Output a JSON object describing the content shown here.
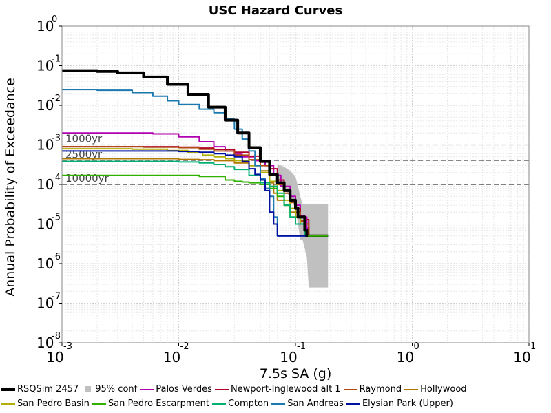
{
  "chart_data": {
    "type": "line",
    "title": "USC Hazard Curves",
    "xlabel": "7.5s SA (g)",
    "ylabel": "Annual Probability of Exceedance",
    "x_scale": "log",
    "y_scale": "log",
    "xlim": [
      0.001,
      10
    ],
    "ylim": [
      1e-08,
      1
    ],
    "grid": true,
    "legend_position": "bottom",
    "x_ticks": [
      {
        "base": "10",
        "exp": "-3"
      },
      {
        "base": "10",
        "exp": "-2"
      },
      {
        "base": "10",
        "exp": "-1"
      },
      {
        "base": "10",
        "exp": "0"
      },
      {
        "base": "10",
        "exp": "1"
      }
    ],
    "y_ticks": [
      {
        "base": "10",
        "exp": "0"
      },
      {
        "base": "10",
        "exp": "-1"
      },
      {
        "base": "10",
        "exp": "-2"
      },
      {
        "base": "10",
        "exp": "-3"
      },
      {
        "base": "10",
        "exp": "-4"
      },
      {
        "base": "10",
        "exp": "-5"
      },
      {
        "base": "10",
        "exp": "-6"
      },
      {
        "base": "10",
        "exp": "-7"
      },
      {
        "base": "10",
        "exp": "-8"
      }
    ],
    "reference_lines": [
      {
        "label": "1000yr",
        "y": 0.001
      },
      {
        "label": "2500yr",
        "y": 0.0004
      },
      {
        "label": "10000yr",
        "y": 0.0001
      }
    ],
    "confidence_band": {
      "name": "95% conf",
      "color": "#c0c0c0",
      "x": [
        0.07,
        0.08,
        0.09,
        0.1,
        0.105,
        0.11,
        0.115,
        0.125,
        0.13,
        0.14,
        0.17,
        0.19
      ],
      "upper": [
        0.00033,
        0.00028,
        0.00022,
        0.00016,
        9e-05,
        5e-05,
        3.2e-05,
        3.2e-05,
        3.2e-05,
        3.2e-05,
        3.2e-05,
        3.2e-05
      ],
      "lower": [
        0.0001,
        8e-05,
        4.5e-05,
        2.5e-05,
        1e-05,
        4e-06,
        4e-06,
        1.5e-06,
        2.5e-07,
        2.5e-07,
        2.5e-07,
        2.5e-07
      ]
    },
    "series": [
      {
        "name": "RSQSim 2457",
        "color": "#000000",
        "width": 4,
        "x": [
          0.001,
          0.002,
          0.003,
          0.005,
          0.008,
          0.012,
          0.018,
          0.025,
          0.032,
          0.04,
          0.05,
          0.06,
          0.07,
          0.08,
          0.09,
          0.1,
          0.105,
          0.11,
          0.115,
          0.12,
          0.125,
          0.128,
          0.19
        ],
        "y": [
          0.075,
          0.072,
          0.066,
          0.052,
          0.034,
          0.019,
          0.009,
          0.0042,
          0.002,
          0.00085,
          0.00038,
          0.00018,
          0.00011,
          7e-05,
          4e-05,
          2.5e-05,
          1.5e-05,
          1.5e-05,
          1.5e-05,
          7e-06,
          5e-06,
          5e-06,
          5e-06
        ]
      },
      {
        "name": "Palos Verdes",
        "color": "#b000b0",
        "width": 2,
        "x": [
          0.001,
          0.003,
          0.006,
          0.01,
          0.015,
          0.02,
          0.025,
          0.03,
          0.035,
          0.045,
          0.055,
          0.065,
          0.075,
          0.09,
          0.1,
          0.11,
          0.115,
          0.12,
          0.125,
          0.13,
          0.19
        ],
        "y": [
          0.002,
          0.002,
          0.0019,
          0.0016,
          0.0012,
          0.0009,
          0.0007,
          0.00058,
          0.0005,
          0.0004,
          0.0003,
          0.00017,
          9e-05,
          5e-05,
          3e-05,
          1.6e-05,
          1.6e-05,
          1.5e-05,
          8e-06,
          5e-06,
          5e-06
        ]
      },
      {
        "name": "Newport-Inglewood alt 1",
        "color": "#b0002a",
        "width": 2,
        "x": [
          0.001,
          0.005,
          0.01,
          0.015,
          0.02,
          0.03,
          0.04,
          0.05,
          0.06,
          0.07,
          0.08,
          0.09,
          0.1,
          0.11,
          0.12,
          0.13,
          0.19
        ],
        "y": [
          0.0009,
          0.0009,
          0.00088,
          0.00083,
          0.00077,
          0.00065,
          0.00052,
          0.0004,
          0.00025,
          0.00013,
          7e-05,
          4e-05,
          2.5e-05,
          1.5e-05,
          1.3e-05,
          5e-06,
          5e-06
        ]
      },
      {
        "name": "Raymond",
        "color": "#b04a10",
        "width": 2,
        "x": [
          0.001,
          0.005,
          0.01,
          0.015,
          0.02,
          0.03,
          0.04,
          0.05,
          0.06,
          0.07,
          0.08,
          0.09,
          0.1,
          0.11,
          0.12,
          0.13,
          0.19
        ],
        "y": [
          0.0009,
          0.00088,
          0.00085,
          0.00078,
          0.0007,
          0.00055,
          0.00042,
          0.0003,
          0.00018,
          0.0001,
          6e-05,
          3.5e-05,
          2e-05,
          1.2e-05,
          1e-05,
          5e-06,
          5e-06
        ]
      },
      {
        "name": "Hollywood",
        "color": "#b07800",
        "width": 2,
        "x": [
          0.001,
          0.005,
          0.01,
          0.015,
          0.02,
          0.03,
          0.04,
          0.05,
          0.06,
          0.065,
          0.07,
          0.08,
          0.09,
          0.1,
          0.11,
          0.12,
          0.19
        ],
        "y": [
          0.00045,
          0.00045,
          0.00043,
          0.00042,
          0.0004,
          0.00035,
          0.0003,
          0.00022,
          0.00011,
          6e-05,
          4e-05,
          3e-05,
          2e-05,
          1.5e-05,
          1e-05,
          5e-06,
          5e-06
        ]
      },
      {
        "name": "San Pedro Basin",
        "color": "#b0b000",
        "width": 2,
        "x": [
          0.001,
          0.004,
          0.008,
          0.012,
          0.016,
          0.02,
          0.025,
          0.03,
          0.04,
          0.05,
          0.06,
          0.07,
          0.08,
          0.09,
          0.1,
          0.11,
          0.12,
          0.19
        ],
        "y": [
          0.0008,
          0.00078,
          0.00072,
          0.00063,
          0.00055,
          0.0005,
          0.00045,
          0.0004,
          0.0003,
          0.0002,
          0.00012,
          7e-05,
          4e-05,
          2.5e-05,
          1.5e-05,
          1e-05,
          5e-06,
          5e-06
        ]
      },
      {
        "name": "San Pedro Escarpment",
        "color": "#30b000",
        "width": 2,
        "x": [
          0.001,
          0.005,
          0.01,
          0.015,
          0.02,
          0.025,
          0.03,
          0.035,
          0.04,
          0.05,
          0.06,
          0.07,
          0.08,
          0.09,
          0.1,
          0.12,
          0.19
        ],
        "y": [
          0.00017,
          0.00017,
          0.00017,
          0.00016,
          0.00016,
          0.00013,
          0.00012,
          0.000115,
          0.00011,
          0.0001,
          8e-05,
          5e-05,
          3e-05,
          1.5e-05,
          1e-05,
          5e-06,
          5e-06
        ]
      },
      {
        "name": "Compton",
        "color": "#00b070",
        "width": 2,
        "x": [
          0.001,
          0.003,
          0.006,
          0.01,
          0.015,
          0.02,
          0.025,
          0.03,
          0.04,
          0.05,
          0.06,
          0.07,
          0.08,
          0.09,
          0.1,
          0.12,
          0.19
        ],
        "y": [
          0.00038,
          0.00038,
          0.00038,
          0.00037,
          0.00035,
          0.00032,
          0.00028,
          0.00024,
          0.00017,
          0.00011,
          9e-05,
          6e-05,
          3e-05,
          1.5e-05,
          1e-05,
          5e-06,
          5e-06
        ]
      },
      {
        "name": "San Andreas",
        "color": "#1a7ab0",
        "width": 2,
        "x": [
          0.001,
          0.002,
          0.004,
          0.006,
          0.008,
          0.01,
          0.015,
          0.02,
          0.025,
          0.03,
          0.035,
          0.04,
          0.045,
          0.05,
          0.055,
          0.06,
          0.065,
          0.07,
          0.08,
          0.09,
          0.1,
          0.12,
          0.19
        ],
        "y": [
          0.025,
          0.024,
          0.021,
          0.017,
          0.013,
          0.0105,
          0.008,
          0.0065,
          0.0045,
          0.0025,
          0.0014,
          0.0007,
          0.0003,
          0.00014,
          8e-05,
          5e-05,
          1.5e-05,
          5e-06,
          5e-06,
          5e-06,
          5e-06,
          5e-06,
          5e-06
        ]
      },
      {
        "name": "Elysian Park (Upper)",
        "color": "#0010a0",
        "width": 2,
        "x": [
          0.001,
          0.005,
          0.01,
          0.015,
          0.02,
          0.025,
          0.03,
          0.035,
          0.04,
          0.045,
          0.05,
          0.055,
          0.06,
          0.065,
          0.07,
          0.075,
          0.08,
          0.09,
          0.1,
          0.19
        ],
        "y": [
          0.0007,
          0.0007,
          0.00068,
          0.00065,
          0.0006,
          0.00055,
          0.0005,
          0.00038,
          0.00025,
          0.00018,
          0.00013,
          7e-05,
          2e-05,
          1e-05,
          5e-06,
          5e-06,
          5e-06,
          5e-06,
          5e-06,
          5e-06
        ]
      }
    ]
  }
}
